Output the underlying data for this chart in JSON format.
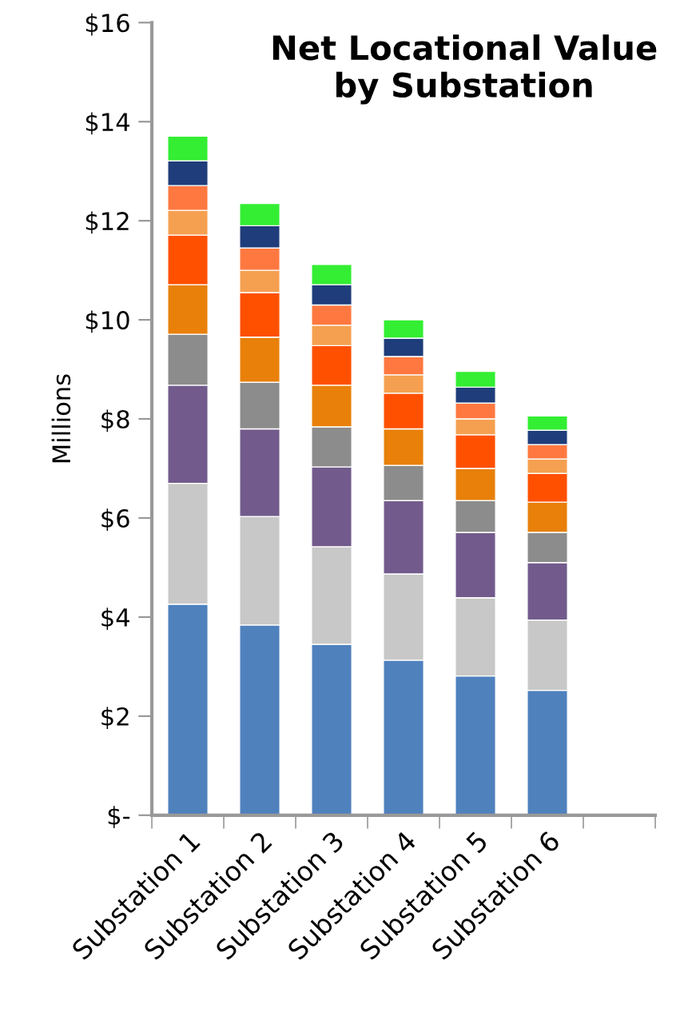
{
  "chart_data": {
    "type": "bar",
    "stacked": true,
    "title": "Net Locational Value\nby Substation",
    "ylabel": "Millions",
    "categories": [
      "Substation 1",
      "Substation 2",
      "Substation 3",
      "Substation 4",
      "Substation 5",
      "Substation 6",
      null
    ],
    "series": [
      {
        "color": "#4f81bd",
        "values": [
          4.26,
          3.84,
          3.45,
          3.13,
          2.81,
          2.52,
          null
        ]
      },
      {
        "color": "#c8c8c8",
        "values": [
          2.44,
          2.19,
          1.97,
          1.74,
          1.58,
          1.42,
          null
        ]
      },
      {
        "color": "#725b8c",
        "values": [
          1.98,
          1.77,
          1.61,
          1.48,
          1.32,
          1.16,
          null
        ]
      },
      {
        "color": "#8c8c8c",
        "values": [
          1.03,
          0.94,
          0.81,
          0.71,
          0.64,
          0.61,
          null
        ]
      },
      {
        "color": "#e8800a",
        "values": [
          1.0,
          0.91,
          0.84,
          0.74,
          0.65,
          0.61,
          null
        ]
      },
      {
        "color": "#ff5000",
        "values": [
          1.0,
          0.9,
          0.8,
          0.72,
          0.68,
          0.58,
          null
        ]
      },
      {
        "color": "#f5a050",
        "values": [
          0.5,
          0.45,
          0.41,
          0.37,
          0.32,
          0.29,
          null
        ]
      },
      {
        "color": "#ff7840",
        "values": [
          0.5,
          0.45,
          0.41,
          0.37,
          0.32,
          0.29,
          null
        ]
      },
      {
        "color": "#1f3d7a",
        "values": [
          0.5,
          0.45,
          0.41,
          0.37,
          0.32,
          0.29,
          null
        ]
      },
      {
        "color": "#33ee33",
        "values": [
          0.5,
          0.45,
          0.41,
          0.37,
          0.32,
          0.29,
          null
        ]
      }
    ],
    "ylim": [
      0,
      16
    ],
    "yticks": [
      {
        "value": 0,
        "label": "$-"
      },
      {
        "value": 2,
        "label": "$2"
      },
      {
        "value": 4,
        "label": "$4"
      },
      {
        "value": 6,
        "label": "$6"
      },
      {
        "value": 8,
        "label": "$8"
      },
      {
        "value": 10,
        "label": "$10"
      },
      {
        "value": 12,
        "label": "$12"
      },
      {
        "value": 14,
        "label": "$14"
      },
      {
        "value": 16,
        "label": "$16"
      }
    ],
    "grid": false,
    "legend": false
  }
}
